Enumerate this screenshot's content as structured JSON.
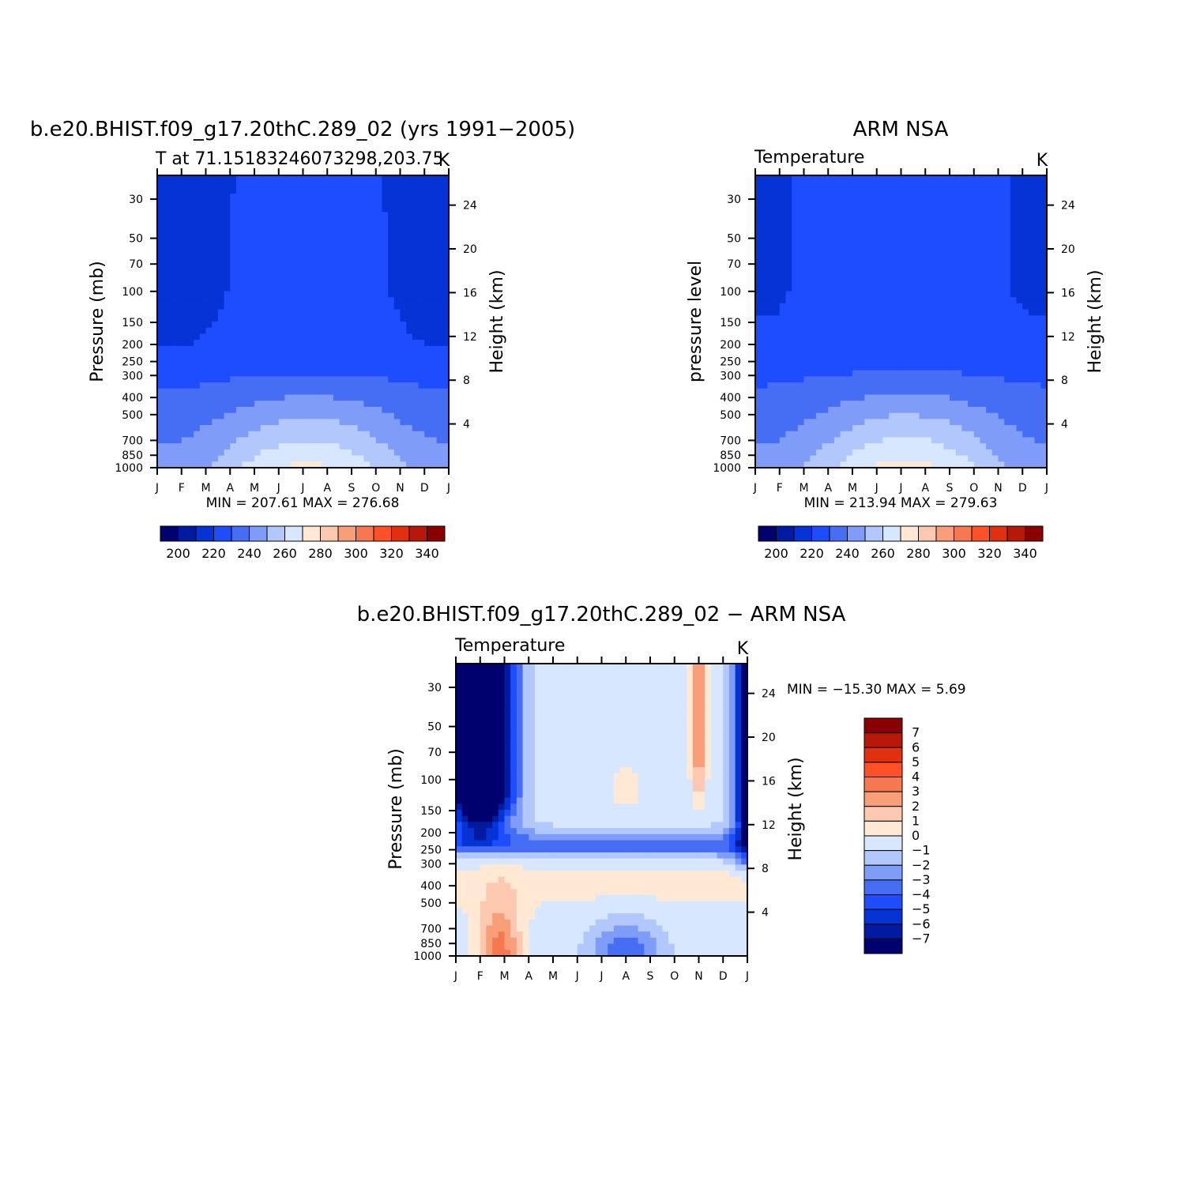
{
  "panels": [
    {
      "title": "b.e20.BHIST.f09_g17.20thC.289_02 (yrs 1991−2005)",
      "left_label": "T at 71.15183246073298,203.75",
      "units": "K",
      "ylabel": "Pressure (mb)",
      "ylabel_right": "Height (km)",
      "stats": "MIN = 207.61 MAX = 276.68"
    },
    {
      "title": "ARM NSA",
      "left_label": "Temperature",
      "units": "K",
      "ylabel": "pressure level",
      "ylabel_right": "Height (km)",
      "stats": "MIN = 213.94 MAX = 279.63"
    },
    {
      "title": "b.e20.BHIST.f09_g17.20thC.289_02 − ARM NSA",
      "left_label": "Temperature",
      "units": "K",
      "ylabel": "Pressure (mb)",
      "ylabel_right": "Height (km)",
      "stats": "MIN = −15.30 MAX =    5.69"
    }
  ],
  "chart_data": [
    {
      "type": "heatmap",
      "x": [
        "J",
        "F",
        "M",
        "A",
        "M",
        "J",
        "J",
        "A",
        "S",
        "O",
        "N",
        "D",
        "J"
      ],
      "y_ticks": [
        30,
        50,
        70,
        100,
        150,
        200,
        250,
        300,
        400,
        500,
        700,
        850,
        1000
      ],
      "y_right_ticks": [
        24,
        20,
        16,
        12,
        8,
        4
      ],
      "ylim": [
        1000,
        22
      ],
      "levels": [
        190,
        200,
        210,
        220,
        230,
        240,
        250,
        260,
        270,
        280,
        290,
        300,
        310,
        320,
        330,
        340,
        350
      ],
      "colorbar_labels": [
        "200",
        "220",
        "240",
        "260",
        "280",
        "300",
        "320",
        "340"
      ],
      "min": 207.61,
      "max": 276.68
    },
    {
      "type": "heatmap",
      "x": [
        "J",
        "F",
        "M",
        "A",
        "M",
        "J",
        "J",
        "A",
        "S",
        "O",
        "N",
        "D",
        "J"
      ],
      "y_ticks": [
        30,
        50,
        70,
        100,
        150,
        200,
        250,
        300,
        400,
        500,
        700,
        850,
        1000
      ],
      "y_right_ticks": [
        24,
        20,
        16,
        12,
        8,
        4
      ],
      "ylim": [
        1000,
        22
      ],
      "levels": [
        190,
        200,
        210,
        220,
        230,
        240,
        250,
        260,
        270,
        280,
        290,
        300,
        310,
        320,
        330,
        340,
        350
      ],
      "colorbar_labels": [
        "200",
        "220",
        "240",
        "260",
        "280",
        "300",
        "320",
        "340"
      ],
      "min": 213.94,
      "max": 279.63
    },
    {
      "type": "heatmap",
      "x": [
        "J",
        "F",
        "M",
        "A",
        "M",
        "J",
        "J",
        "A",
        "S",
        "O",
        "N",
        "D",
        "J"
      ],
      "y_ticks": [
        30,
        50,
        70,
        100,
        150,
        200,
        250,
        300,
        400,
        500,
        700,
        850,
        1000
      ],
      "y_right_ticks": [
        24,
        20,
        16,
        12,
        8,
        4
      ],
      "ylim": [
        1000,
        22
      ],
      "levels": [
        -8,
        -7,
        -6,
        -5,
        -4,
        -3,
        -2,
        -1,
        0,
        1,
        2,
        3,
        4,
        5,
        6,
        7,
        8
      ],
      "colorbar_labels": [
        "7",
        "6",
        "5",
        "4",
        "3",
        "2",
        "1",
        "0",
        "−1",
        "−2",
        "−3",
        "−4",
        "−5",
        "−6",
        "−7"
      ],
      "min": -15.3,
      "max": 5.69
    }
  ],
  "palette": [
    "#00006e",
    "#001aa0",
    "#0533d6",
    "#1e4dff",
    "#466ef5",
    "#7e9cf8",
    "#b2c8fc",
    "#d7e7ff",
    "#ffe8d4",
    "#fcc8b0",
    "#f89e78",
    "#f67850",
    "#ff5028",
    "#e03010",
    "#b81808",
    "#8a0000"
  ]
}
